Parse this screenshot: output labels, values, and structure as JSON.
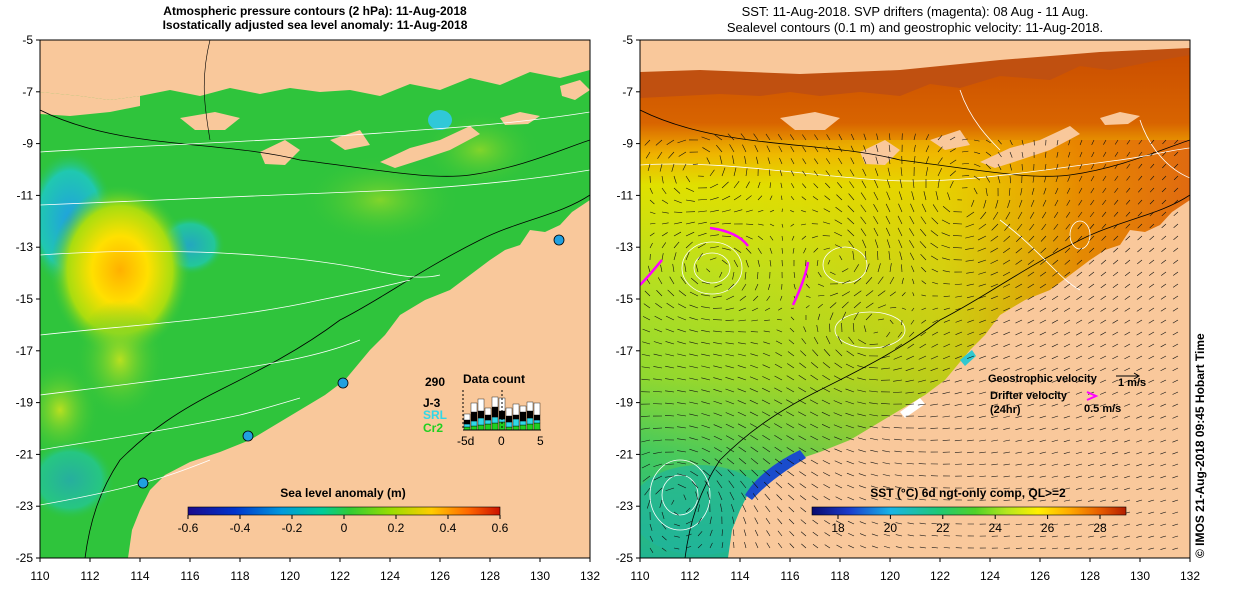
{
  "left_panel": {
    "title_line1": "Atmospheric pressure contours (2 hPa): 11-Aug-2018",
    "title_line2": "Isostatically adjusted sea level anomaly: 11-Aug-2018",
    "colorbar_title": "Sea level anomaly (m)",
    "colorbar_ticks": [
      "-0.6",
      "-0.4",
      "-0.2",
      "0",
      "0.2",
      "0.4",
      "0.6"
    ],
    "colorbar_colors": [
      "#1a0a8c",
      "#0033cc",
      "#0099dd",
      "#00cc99",
      "#33cc33",
      "#99dd00",
      "#ffcc00",
      "#ff6600",
      "#cc1100"
    ],
    "data_count": {
      "total": "290",
      "label": "Data count",
      "sat_j3": "J-3",
      "sat_srl": "SRL",
      "sat_cr2": "Cr2",
      "xticks": [
        "-5d",
        "0",
        "5"
      ]
    }
  },
  "right_panel": {
    "title_line1": "SST: 11-Aug-2018. SVP drifters (magenta): 08 Aug - 11 Aug.",
    "title_line2": "Sealevel contours (0.1 m) and geostrophic velocity: 11-Aug-2018.",
    "colorbar_title": "SST (°C) 6d ngt-only comp, QL>=2",
    "colorbar_ticks": [
      "18",
      "20",
      "22",
      "24",
      "26",
      "28"
    ],
    "colorbar_colors": [
      "#0a0a6e",
      "#1a3ccc",
      "#19b4e6",
      "#1ec878",
      "#50d228",
      "#b4e61e",
      "#fff000",
      "#ffaa00",
      "#e65a00",
      "#b41e00"
    ],
    "geostrophic_label": "Geostrophic velocity",
    "geostrophic_scale": "1 m/s",
    "drifter_label_1": "Drifter velocity",
    "drifter_label_2": "(24hr)",
    "drifter_scale": "0.5 m/s"
  },
  "axes": {
    "y_ticks": [
      "-5",
      "-7",
      "-9",
      "-11",
      "-13",
      "-15",
      "-17",
      "-19",
      "-21",
      "-23",
      "-25"
    ],
    "x_ticks": [
      "110",
      "112",
      "114",
      "116",
      "118",
      "120",
      "122",
      "124",
      "126",
      "128",
      "130",
      "132"
    ]
  },
  "credit": "© IMOS 21-Aug-2018 09:45 Hobart Time",
  "colors": {
    "land": "#f9c89b",
    "sla_background": "#2fc43c",
    "sst_warm": "#e06a10",
    "sst_mid": "#a8e020"
  }
}
